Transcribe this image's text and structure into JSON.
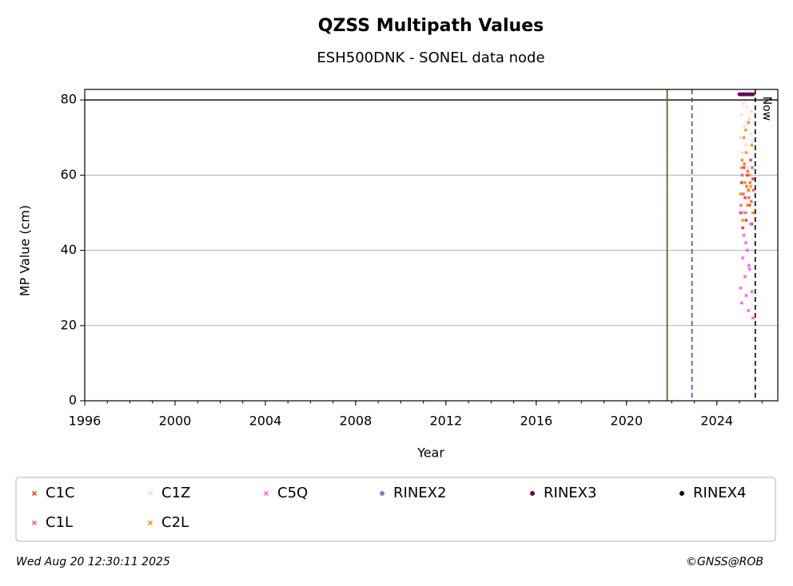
{
  "chart_data": {
    "type": "scatter",
    "title": "QZSS Multipath Values",
    "subtitle": "ESH500DNK - SONEL data node",
    "xlabel": "Year",
    "ylabel": "MP Value (cm)",
    "xlim": [
      1996,
      2026.7
    ],
    "ylim": [
      0,
      82.8
    ],
    "xticks": [
      1996,
      2000,
      2004,
      2008,
      2012,
      2016,
      2020,
      2024
    ],
    "yticks": [
      0,
      20,
      40,
      60,
      80
    ],
    "xminor_step": 1,
    "grid": "y",
    "vlines": [
      {
        "x": 2021.8,
        "color": "#008000",
        "dash": "solid"
      },
      {
        "x": 2021.8,
        "color": "#d62728",
        "dash": "dotted"
      },
      {
        "x": 2022.9,
        "color": "#1f5fa0",
        "dash": "dashed"
      },
      {
        "x": 2025.7,
        "color": "#000000",
        "dash": "dashed",
        "label": "Now"
      }
    ],
    "hlines": [
      {
        "y": 80,
        "color": "#000000"
      }
    ],
    "series": [
      {
        "name": "C1C",
        "color": "#e8352c",
        "marker": "x",
        "x": [
          2025.05,
          2025.1,
          2025.15,
          2025.2,
          2025.25,
          2025.3,
          2025.35,
          2025.4,
          2025.45,
          2025.5,
          2025.55,
          2025.6
        ],
        "values": [
          50,
          58,
          46,
          62,
          54,
          48,
          60,
          56,
          52,
          64,
          47,
          59
        ]
      },
      {
        "name": "C1L",
        "color": "#f0605a",
        "marker": "x",
        "x": [
          2025.07,
          2025.12,
          2025.17,
          2025.22,
          2025.27,
          2025.32,
          2025.37,
          2025.42,
          2025.47,
          2025.52,
          2025.57,
          2025.62
        ],
        "values": [
          52,
          60,
          55,
          63,
          50,
          57,
          61,
          54,
          58,
          53,
          62,
          56
        ]
      },
      {
        "name": "C1Z",
        "color": "#ffd6dc",
        "marker": "x",
        "x": [
          2025.03,
          2025.08,
          2025.13,
          2025.18,
          2025.23,
          2025.28,
          2025.33,
          2025.38,
          2025.43,
          2025.48,
          2025.53,
          2025.58
        ],
        "values": [
          70,
          76,
          66,
          79,
          73,
          68,
          78,
          62,
          75,
          71,
          77,
          69
        ]
      },
      {
        "name": "C2L",
        "color": "#ff8c00",
        "marker": "x",
        "x": [
          2025.05,
          2025.1,
          2025.15,
          2025.2,
          2025.25,
          2025.3,
          2025.35,
          2025.4,
          2025.45,
          2025.5,
          2025.55,
          2025.6,
          2025.12,
          2025.28,
          2025.42
        ],
        "values": [
          55,
          62,
          48,
          70,
          58,
          66,
          52,
          74,
          60,
          57,
          68,
          50,
          64,
          72,
          56
        ]
      },
      {
        "name": "C5Q",
        "color": "#ff55ff",
        "marker": "x",
        "x": [
          2025.05,
          2025.1,
          2025.15,
          2025.2,
          2025.25,
          2025.3,
          2025.35,
          2025.4,
          2025.45,
          2025.5,
          2025.55,
          2025.6,
          2025.12,
          2025.28,
          2025.42
        ],
        "values": [
          30,
          26,
          38,
          44,
          33,
          28,
          40,
          24,
          35,
          47,
          29,
          22,
          50,
          42,
          36
        ]
      },
      {
        "name": "RINEX2",
        "color": "#8878c0",
        "marker": "o",
        "x": [],
        "values": []
      },
      {
        "name": "RINEX3",
        "color": "#6a0060",
        "marker": "o",
        "x": [
          2025.0,
          2025.05,
          2025.1,
          2025.15,
          2025.2,
          2025.25,
          2025.3,
          2025.35,
          2025.4,
          2025.45,
          2025.5,
          2025.55,
          2025.6
        ],
        "values": [
          81.5,
          81.5,
          81.5,
          81.5,
          81.5,
          81.5,
          81.5,
          81.5,
          81.5,
          81.5,
          81.5,
          81.5,
          81.5
        ]
      },
      {
        "name": "RINEX4",
        "color": "#1a0010",
        "marker": "o",
        "x": [],
        "values": []
      }
    ],
    "footer_left": "Wed Aug 20 12:30:11 2025",
    "footer_right": "©GNSS@ROB"
  }
}
